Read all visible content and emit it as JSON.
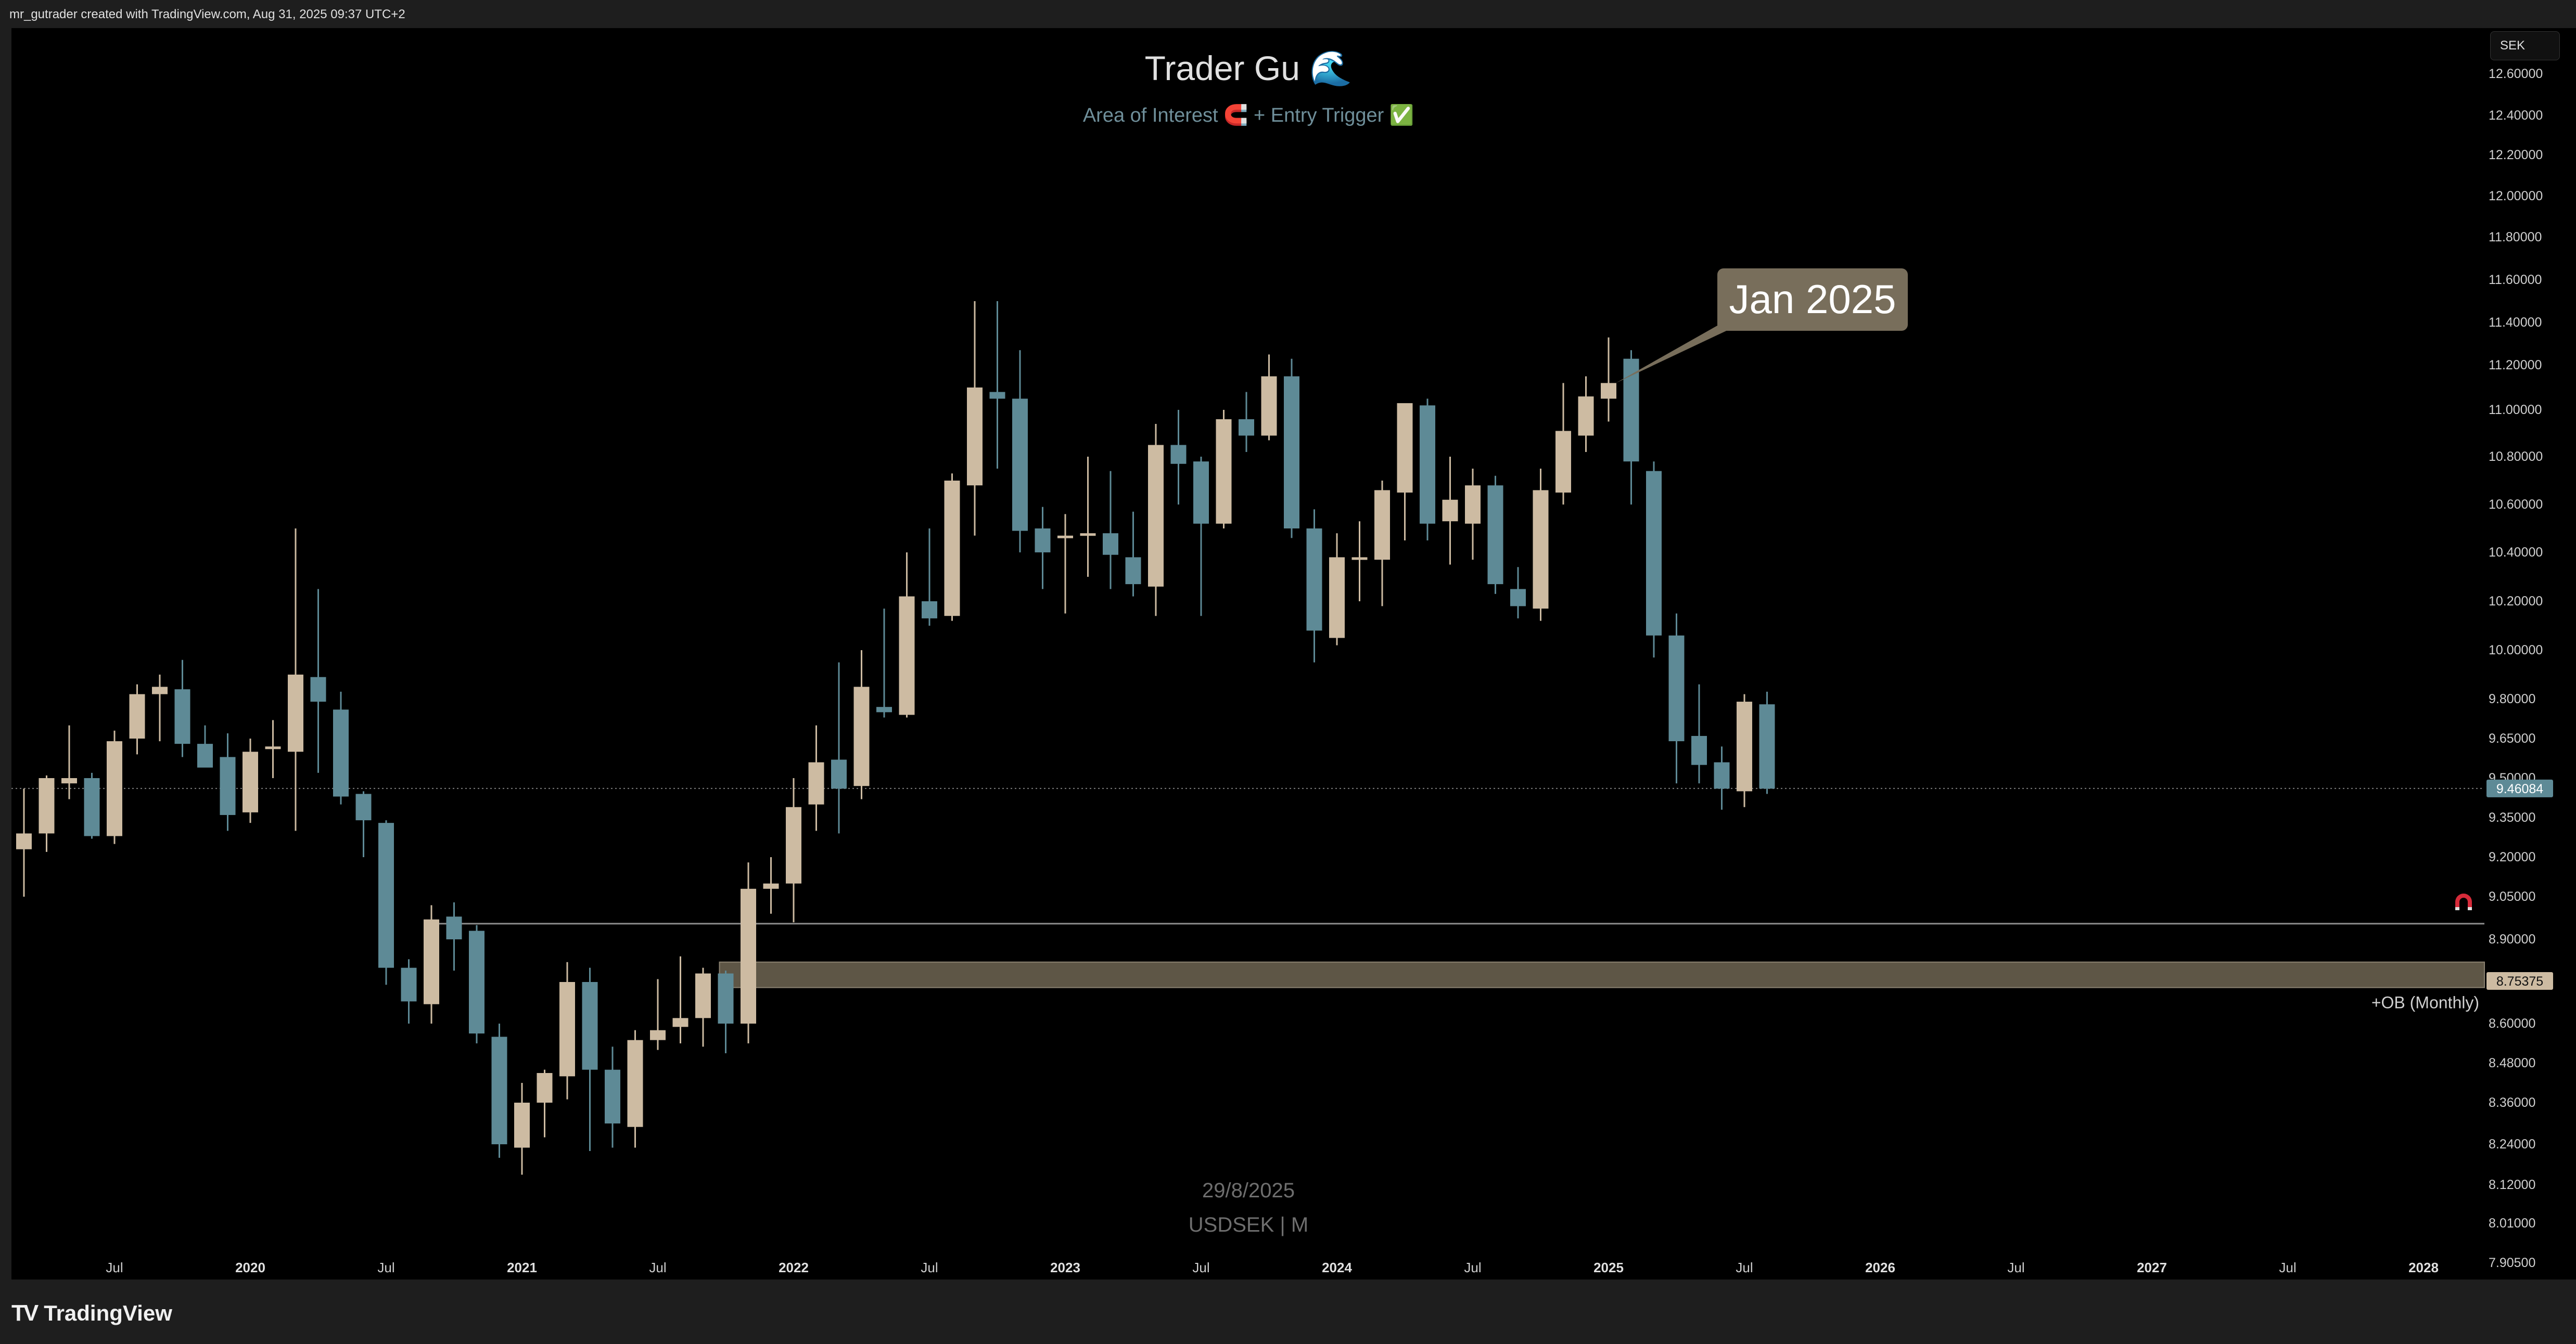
{
  "credit": "mr_gutrader created with TradingView.com, Aug 31, 2025 09:37 UTC+2",
  "brand": "TradingView",
  "currency": "SEK",
  "title": "Trader Gu 🌊",
  "subtitle": "Area of Interest 🧲 + Entry Trigger ✅",
  "watermark_date": "29/8/2025",
  "watermark_symbol": "USDSEK | M",
  "callout": "Jan 2025",
  "colors": {
    "up": "#cdbba2",
    "down": "#5e8a96",
    "background": "#000000",
    "zone": "#6e6552",
    "callout": "#786e5b"
  },
  "chart_data": {
    "type": "candlestick",
    "symbol": "USDSEK",
    "timeframe": "M",
    "start_month": "2019-03",
    "x_ticks": [
      {
        "label": "Jul",
        "date": "2019-07"
      },
      {
        "label": "2020",
        "date": "2020-01"
      },
      {
        "label": "Jul",
        "date": "2020-07"
      },
      {
        "label": "2021",
        "date": "2021-01"
      },
      {
        "label": "Jul",
        "date": "2021-07"
      },
      {
        "label": "2022",
        "date": "2022-01"
      },
      {
        "label": "Jul",
        "date": "2022-07"
      },
      {
        "label": "2023",
        "date": "2023-01"
      },
      {
        "label": "Jul",
        "date": "2023-07"
      },
      {
        "label": "2024",
        "date": "2024-01"
      },
      {
        "label": "Jul",
        "date": "2024-07"
      },
      {
        "label": "2025",
        "date": "2025-01"
      },
      {
        "label": "Jul",
        "date": "2025-07"
      },
      {
        "label": "2026",
        "date": "2026-01"
      },
      {
        "label": "Jul",
        "date": "2026-07"
      },
      {
        "label": "2027",
        "date": "2027-01"
      },
      {
        "label": "Jul",
        "date": "2027-07"
      },
      {
        "label": "2028",
        "date": "2028-01"
      }
    ],
    "y_ticks": [
      "12.60000",
      "12.40000",
      "12.20000",
      "12.00000",
      "11.80000",
      "11.60000",
      "11.40000",
      "11.20000",
      "11.00000",
      "10.80000",
      "10.60000",
      "10.40000",
      "10.20000",
      "10.00000",
      "9.80000",
      "9.65000",
      "9.50000",
      "9.35000",
      "9.20000",
      "9.05000",
      "8.90000",
      "8.75000",
      "8.60000",
      "8.48000",
      "8.36000",
      "8.24000",
      "8.12000",
      "8.01000",
      "7.90500"
    ],
    "last_price": "9.46084",
    "zone_price": "8.75375",
    "zone": {
      "label": "+OB (Monthly)",
      "top": 8.82,
      "bottom": 8.73,
      "start": "2021-10"
    },
    "level": {
      "value": 8.955,
      "start": "2020-09"
    },
    "candles": [
      {
        "d": "2019-03",
        "o": 9.23,
        "h": 9.46,
        "l": 9.05,
        "c": 9.29
      },
      {
        "d": "2019-04",
        "o": 9.29,
        "h": 9.51,
        "l": 9.22,
        "c": 9.5
      },
      {
        "d": "2019-05",
        "o": 9.48,
        "h": 9.7,
        "l": 9.42,
        "c": 9.5
      },
      {
        "d": "2019-06",
        "o": 9.5,
        "h": 9.52,
        "l": 9.27,
        "c": 9.28
      },
      {
        "d": "2019-07",
        "o": 9.28,
        "h": 9.68,
        "l": 9.25,
        "c": 9.64
      },
      {
        "d": "2019-08",
        "o": 9.65,
        "h": 9.86,
        "l": 9.59,
        "c": 9.82
      },
      {
        "d": "2019-09",
        "o": 9.82,
        "h": 9.9,
        "l": 9.64,
        "c": 9.85
      },
      {
        "d": "2019-10",
        "o": 9.84,
        "h": 9.96,
        "l": 9.58,
        "c": 9.63
      },
      {
        "d": "2019-11",
        "o": 9.63,
        "h": 9.7,
        "l": 9.55,
        "c": 9.54
      },
      {
        "d": "2019-12",
        "o": 9.58,
        "h": 9.67,
        "l": 9.3,
        "c": 9.36
      },
      {
        "d": "2020-01",
        "o": 9.37,
        "h": 9.65,
        "l": 9.33,
        "c": 9.6
      },
      {
        "d": "2020-02",
        "o": 9.61,
        "h": 9.72,
        "l": 9.5,
        "c": 9.62
      },
      {
        "d": "2020-03",
        "o": 9.6,
        "h": 10.5,
        "l": 9.3,
        "c": 9.9
      },
      {
        "d": "2020-04",
        "o": 9.89,
        "h": 10.25,
        "l": 9.52,
        "c": 9.79
      },
      {
        "d": "2020-05",
        "o": 9.76,
        "h": 9.83,
        "l": 9.4,
        "c": 9.43
      },
      {
        "d": "2020-06",
        "o": 9.44,
        "h": 9.45,
        "l": 9.2,
        "c": 9.34
      },
      {
        "d": "2020-07",
        "o": 9.33,
        "h": 9.34,
        "l": 8.74,
        "c": 8.8
      },
      {
        "d": "2020-08",
        "o": 8.8,
        "h": 8.83,
        "l": 8.6,
        "c": 8.68
      },
      {
        "d": "2020-09",
        "o": 8.67,
        "h": 9.02,
        "l": 8.6,
        "c": 8.97
      },
      {
        "d": "2020-10",
        "o": 8.98,
        "h": 9.03,
        "l": 8.79,
        "c": 8.9
      },
      {
        "d": "2020-11",
        "o": 8.93,
        "h": 8.95,
        "l": 8.54,
        "c": 8.57
      },
      {
        "d": "2020-12",
        "o": 8.56,
        "h": 8.6,
        "l": 8.2,
        "c": 8.24
      },
      {
        "d": "2021-01",
        "o": 8.23,
        "h": 8.42,
        "l": 8.15,
        "c": 8.36
      },
      {
        "d": "2021-02",
        "o": 8.36,
        "h": 8.46,
        "l": 8.26,
        "c": 8.45
      },
      {
        "d": "2021-03",
        "o": 8.44,
        "h": 8.82,
        "l": 8.37,
        "c": 8.75
      },
      {
        "d": "2021-04",
        "o": 8.75,
        "h": 8.8,
        "l": 8.22,
        "c": 8.46
      },
      {
        "d": "2021-05",
        "o": 8.46,
        "h": 8.53,
        "l": 8.23,
        "c": 8.3
      },
      {
        "d": "2021-06",
        "o": 8.29,
        "h": 8.58,
        "l": 8.23,
        "c": 8.55
      },
      {
        "d": "2021-07",
        "o": 8.55,
        "h": 8.76,
        "l": 8.52,
        "c": 8.58
      },
      {
        "d": "2021-08",
        "o": 8.59,
        "h": 8.84,
        "l": 8.54,
        "c": 8.62
      },
      {
        "d": "2021-09",
        "o": 8.62,
        "h": 8.8,
        "l": 8.53,
        "c": 8.78
      },
      {
        "d": "2021-10",
        "o": 8.78,
        "h": 8.79,
        "l": 8.51,
        "c": 8.6
      },
      {
        "d": "2021-11",
        "o": 8.6,
        "h": 9.18,
        "l": 8.54,
        "c": 9.08
      },
      {
        "d": "2021-12",
        "o": 9.08,
        "h": 9.2,
        "l": 8.99,
        "c": 9.1
      },
      {
        "d": "2022-01",
        "o": 9.1,
        "h": 9.5,
        "l": 8.96,
        "c": 9.39
      },
      {
        "d": "2022-02",
        "o": 9.4,
        "h": 9.7,
        "l": 9.3,
        "c": 9.56
      },
      {
        "d": "2022-03",
        "o": 9.57,
        "h": 9.95,
        "l": 9.29,
        "c": 9.46
      },
      {
        "d": "2022-04",
        "o": 9.47,
        "h": 10.0,
        "l": 9.42,
        "c": 9.85
      },
      {
        "d": "2022-05",
        "o": 9.77,
        "h": 10.17,
        "l": 9.73,
        "c": 9.75
      },
      {
        "d": "2022-06",
        "o": 9.74,
        "h": 10.4,
        "l": 9.73,
        "c": 10.22
      },
      {
        "d": "2022-07",
        "o": 10.2,
        "h": 10.5,
        "l": 10.1,
        "c": 10.13
      },
      {
        "d": "2022-08",
        "o": 10.14,
        "h": 10.73,
        "l": 10.12,
        "c": 10.7
      },
      {
        "d": "2022-09",
        "o": 10.68,
        "h": 11.5,
        "l": 10.47,
        "c": 11.1
      },
      {
        "d": "2022-10",
        "o": 11.08,
        "h": 11.5,
        "l": 10.75,
        "c": 11.05
      },
      {
        "d": "2022-11",
        "o": 11.05,
        "h": 11.27,
        "l": 10.4,
        "c": 10.49
      },
      {
        "d": "2022-12",
        "o": 10.5,
        "h": 10.59,
        "l": 10.25,
        "c": 10.4
      },
      {
        "d": "2023-01",
        "o": 10.46,
        "h": 10.56,
        "l": 10.15,
        "c": 10.47
      },
      {
        "d": "2023-02",
        "o": 10.47,
        "h": 10.8,
        "l": 10.3,
        "c": 10.48
      },
      {
        "d": "2023-03",
        "o": 10.48,
        "h": 10.74,
        "l": 10.25,
        "c": 10.39
      },
      {
        "d": "2023-04",
        "o": 10.38,
        "h": 10.57,
        "l": 10.22,
        "c": 10.27
      },
      {
        "d": "2023-05",
        "o": 10.26,
        "h": 10.94,
        "l": 10.14,
        "c": 10.85
      },
      {
        "d": "2023-06",
        "o": 10.85,
        "h": 11.0,
        "l": 10.6,
        "c": 10.77
      },
      {
        "d": "2023-07",
        "o": 10.78,
        "h": 10.8,
        "l": 10.14,
        "c": 10.52
      },
      {
        "d": "2023-08",
        "o": 10.52,
        "h": 11.0,
        "l": 10.5,
        "c": 10.96
      },
      {
        "d": "2023-09",
        "o": 10.96,
        "h": 11.08,
        "l": 10.82,
        "c": 10.89
      },
      {
        "d": "2023-10",
        "o": 10.89,
        "h": 11.25,
        "l": 10.87,
        "c": 11.15
      },
      {
        "d": "2023-11",
        "o": 11.15,
        "h": 11.23,
        "l": 10.46,
        "c": 10.5
      },
      {
        "d": "2023-12",
        "o": 10.5,
        "h": 10.58,
        "l": 9.95,
        "c": 10.08
      },
      {
        "d": "2024-01",
        "o": 10.05,
        "h": 10.48,
        "l": 10.02,
        "c": 10.38
      },
      {
        "d": "2024-02",
        "o": 10.37,
        "h": 10.53,
        "l": 10.2,
        "c": 10.38
      },
      {
        "d": "2024-03",
        "o": 10.37,
        "h": 10.7,
        "l": 10.18,
        "c": 10.66
      },
      {
        "d": "2024-04",
        "o": 10.65,
        "h": 11.0,
        "l": 10.45,
        "c": 11.03
      },
      {
        "d": "2024-05",
        "o": 11.02,
        "h": 11.05,
        "l": 10.45,
        "c": 10.52
      },
      {
        "d": "2024-06",
        "o": 10.53,
        "h": 10.8,
        "l": 10.35,
        "c": 10.62
      },
      {
        "d": "2024-07",
        "o": 10.52,
        "h": 10.75,
        "l": 10.37,
        "c": 10.68
      },
      {
        "d": "2024-08",
        "o": 10.68,
        "h": 10.72,
        "l": 10.23,
        "c": 10.27
      },
      {
        "d": "2024-09",
        "o": 10.25,
        "h": 10.34,
        "l": 10.13,
        "c": 10.18
      },
      {
        "d": "2024-10",
        "o": 10.17,
        "h": 10.75,
        "l": 10.12,
        "c": 10.66
      },
      {
        "d": "2024-11",
        "o": 10.65,
        "h": 11.12,
        "l": 10.6,
        "c": 10.91
      },
      {
        "d": "2024-12",
        "o": 10.89,
        "h": 11.15,
        "l": 10.82,
        "c": 11.06
      },
      {
        "d": "2025-01",
        "o": 11.05,
        "h": 11.33,
        "l": 10.95,
        "c": 11.12
      },
      {
        "d": "2025-02",
        "o": 11.23,
        "h": 11.27,
        "l": 10.6,
        "c": 10.78
      },
      {
        "d": "2025-03",
        "o": 10.74,
        "h": 10.78,
        "l": 9.97,
        "c": 10.06
      },
      {
        "d": "2025-04",
        "o": 10.06,
        "h": 10.15,
        "l": 9.48,
        "c": 9.64
      },
      {
        "d": "2025-05",
        "o": 9.66,
        "h": 9.86,
        "l": 9.48,
        "c": 9.55
      },
      {
        "d": "2025-06",
        "o": 9.56,
        "h": 9.62,
        "l": 9.38,
        "c": 9.46
      },
      {
        "d": "2025-07",
        "o": 9.45,
        "h": 9.82,
        "l": 9.39,
        "c": 9.79
      },
      {
        "d": "2025-08",
        "o": 9.78,
        "h": 9.83,
        "l": 9.44,
        "c": 9.46
      }
    ]
  }
}
